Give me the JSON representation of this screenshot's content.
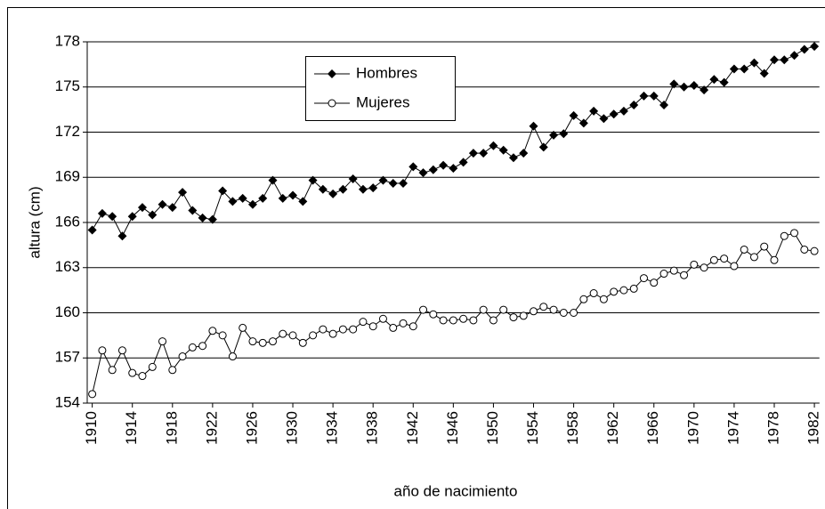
{
  "chart_data": {
    "type": "line",
    "x_label": "año de nacimiento",
    "y_label": "altura (cm)",
    "x": [
      1910,
      1911,
      1912,
      1913,
      1914,
      1915,
      1916,
      1917,
      1918,
      1919,
      1920,
      1921,
      1922,
      1923,
      1924,
      1925,
      1926,
      1927,
      1928,
      1929,
      1930,
      1931,
      1932,
      1933,
      1934,
      1935,
      1936,
      1937,
      1938,
      1939,
      1940,
      1941,
      1942,
      1943,
      1944,
      1945,
      1946,
      1947,
      1948,
      1949,
      1950,
      1951,
      1952,
      1953,
      1954,
      1955,
      1956,
      1957,
      1958,
      1959,
      1960,
      1961,
      1962,
      1963,
      1964,
      1965,
      1966,
      1967,
      1968,
      1969,
      1970,
      1971,
      1972,
      1973,
      1974,
      1975,
      1976,
      1977,
      1978,
      1979,
      1980,
      1981,
      1982
    ],
    "series": [
      {
        "name": "Hombres",
        "color": "#000000",
        "marker": "diamond",
        "values": [
          165.5,
          166.6,
          166.4,
          165.1,
          166.4,
          167.0,
          166.5,
          167.2,
          167.0,
          168.0,
          166.8,
          166.3,
          166.2,
          168.1,
          167.4,
          167.6,
          167.2,
          167.6,
          168.8,
          167.6,
          167.8,
          167.4,
          168.8,
          168.2,
          167.9,
          168.2,
          168.9,
          168.2,
          168.3,
          168.8,
          168.6,
          168.6,
          169.7,
          169.3,
          169.5,
          169.8,
          169.6,
          170.0,
          170.6,
          170.6,
          171.1,
          170.8,
          170.3,
          170.6,
          172.4,
          171.0,
          171.8,
          171.9,
          173.1,
          172.6,
          173.4,
          172.9,
          173.2,
          173.4,
          173.8,
          174.4,
          174.4,
          173.8,
          175.2,
          175.0,
          175.1,
          174.8,
          175.5,
          175.3,
          176.2,
          176.2,
          176.6,
          175.9,
          176.8,
          176.8,
          177.1,
          177.5,
          177.7
        ]
      },
      {
        "name": "Mujeres",
        "color": "#000000",
        "marker": "circle",
        "values": [
          154.6,
          157.5,
          156.2,
          157.5,
          156.0,
          155.8,
          156.4,
          158.1,
          156.2,
          157.1,
          157.7,
          157.8,
          158.8,
          158.5,
          157.1,
          159.0,
          158.1,
          158.0,
          158.1,
          158.6,
          158.5,
          158.0,
          158.5,
          158.9,
          158.6,
          158.9,
          158.9,
          159.4,
          159.1,
          159.6,
          159.0,
          159.3,
          159.1,
          160.2,
          159.9,
          159.5,
          159.5,
          159.6,
          159.5,
          160.2,
          159.5,
          160.2,
          159.7,
          159.8,
          160.1,
          160.4,
          160.2,
          160.0,
          160.0,
          160.9,
          161.3,
          160.9,
          161.4,
          161.5,
          161.6,
          162.3,
          162.0,
          162.6,
          162.8,
          162.5,
          163.2,
          163.0,
          163.5,
          163.6,
          163.1,
          164.2,
          163.7,
          164.4,
          163.5,
          165.1,
          165.3,
          164.2,
          164.1
        ]
      }
    ],
    "xlim": [
      1909.5,
      1982.5
    ],
    "xticks": [
      1910,
      1914,
      1918,
      1922,
      1926,
      1930,
      1934,
      1938,
      1942,
      1946,
      1950,
      1954,
      1958,
      1962,
      1966,
      1970,
      1974,
      1978,
      1982
    ],
    "ylim": [
      154,
      178
    ],
    "yticks": [
      154,
      157,
      160,
      163,
      166,
      169,
      172,
      175,
      178
    ],
    "grid": true
  }
}
